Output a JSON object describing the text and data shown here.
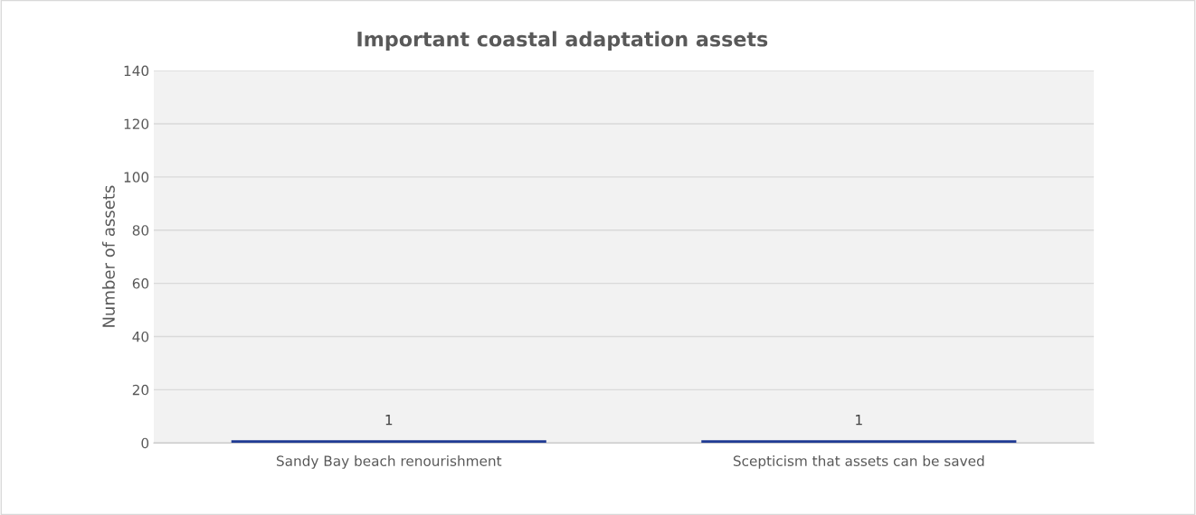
{
  "chart_data": {
    "type": "bar",
    "title": "Important coastal adaptation assets",
    "ylabel": "Number of assets",
    "categories": [
      "Sandy Bay beach renourishment",
      "Scepticism that assets can be saved"
    ],
    "values": [
      1,
      1
    ],
    "color": "#1f3a93",
    "ylim": [
      0,
      140
    ],
    "yticks": [
      0,
      20,
      40,
      60,
      80,
      100,
      120,
      140
    ],
    "grid": "y",
    "data_labels": true
  }
}
